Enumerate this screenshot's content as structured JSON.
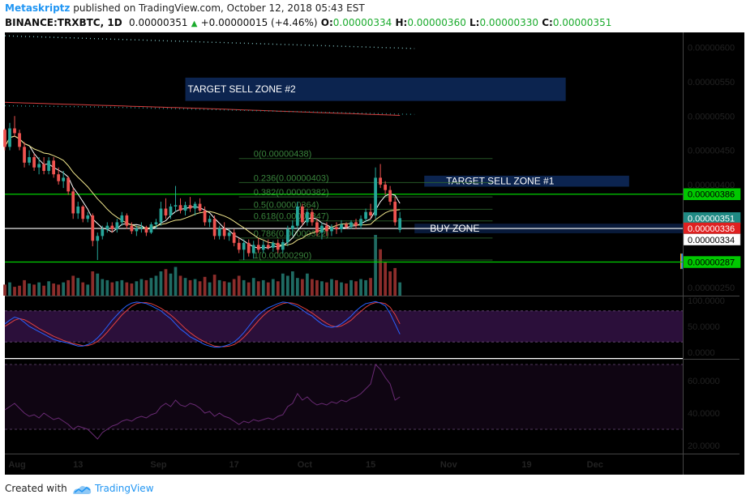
{
  "header": {
    "author": "Metaskriptz",
    "published_text": "published on TradingView.com, October 12, 2018 05:43 EST",
    "symbol": "BINANCE:TRXBTC, 1D",
    "last": "0.00000351",
    "change_text": "+0.00000015 (+4.46%)",
    "o_label": "O:",
    "o_value": "0.00000334",
    "h_label": "H:",
    "h_value": "0.00000360",
    "l_label": "L:",
    "l_value": "0.00000330",
    "c_label": "C:",
    "c_value": "0.00000351"
  },
  "footer": {
    "created_with": "Created with",
    "brand": "TradingView"
  },
  "colors": {
    "background": "#000000",
    "bull": "#26a69a",
    "bear": "#ef5350",
    "support_line": "#00d000",
    "zone_fill": "#10306a",
    "volume_profile_up": "#1e88e5",
    "volume_profile_down": "#f5a623",
    "stoch_k": "#2962ff",
    "stoch_d": "#e04040",
    "stoch_band": "#2b0f3a",
    "rsi_line": "#6a2b75"
  },
  "chart_data": {
    "type": "candlestick",
    "x_ticks": [
      "Aug",
      "13",
      "Sep",
      "17",
      "Oct",
      "15",
      "Nov",
      "19",
      "Dec"
    ],
    "y_ticks": [
      "0.00000600",
      "0.00000550",
      "0.00000500",
      "0.00000450",
      "0.00000400",
      "0.00000250"
    ],
    "ylim": [
      2.38e-06,
      6.22e-06
    ],
    "x_domain_days": [
      0,
      139
    ],
    "price_labels": [
      {
        "text": "0.00000386",
        "value": 3.86e-06,
        "style": "support"
      },
      {
        "text": "0.00000351",
        "value": 3.51e-06,
        "style": "last"
      },
      {
        "text": "0.00000336",
        "value": 3.36e-06,
        "style": "red"
      },
      {
        "text": "0.00000334",
        "value": 3.34e-06,
        "style": "white"
      },
      {
        "text": "0.00000287",
        "value": 2.87e-06,
        "style": "support"
      }
    ],
    "zones": [
      {
        "label": "TARGET SELL ZONE #2",
        "x_start": 37,
        "x_end": 115,
        "y_top": 5.56e-06,
        "y_bottom": 5.22e-06
      },
      {
        "label": "TARGET SELL ZONE #1",
        "x_start": 86,
        "x_end": 128,
        "y_top": 4.13e-06,
        "y_bottom": 3.97e-06
      },
      {
        "label": "BUY ZONE",
        "x_start": 84,
        "x_end": 139,
        "y_top": 3.43e-06,
        "y_bottom": 3.29e-06
      }
    ],
    "support_lines": [
      3.86e-06,
      2.87e-06
    ],
    "fib_levels": [
      {
        "label": "0(0.00000438)",
        "value": 4.38e-06
      },
      {
        "label": "0.236(0.00000403)",
        "value": 4.03e-06
      },
      {
        "label": "0.382(0.00000382)",
        "value": 3.82e-06
      },
      {
        "label": "0.5(0.00000364)",
        "value": 3.64e-06
      },
      {
        "label": "0.618(0.00000347)",
        "value": 3.47e-06
      },
      {
        "label": "0.786(0.00000322)",
        "value": 3.22e-06
      },
      {
        "label": "1(0.00000290)",
        "value": 2.9e-06
      }
    ],
    "candles": [
      [
        0,
        4.8e-06,
        4.82e-06,
        4.5e-06,
        4.55e-06
      ],
      [
        1,
        4.55e-06,
        4.9e-06,
        4.5e-06,
        4.82e-06
      ],
      [
        2,
        4.82e-06,
        5e-06,
        4.7e-06,
        4.75e-06
      ],
      [
        3,
        4.75e-06,
        4.8e-06,
        4.5e-06,
        4.55e-06
      ],
      [
        4,
        4.55e-06,
        4.62e-06,
        4.25e-06,
        4.32e-06
      ],
      [
        5,
        4.32e-06,
        4.5e-06,
        4.28e-06,
        4.4e-06
      ],
      [
        6,
        4.4e-06,
        4.45e-06,
        4.2e-06,
        4.25e-06
      ],
      [
        7,
        4.25e-06,
        4.4e-06,
        4.15e-06,
        4.3e-06
      ],
      [
        8,
        4.3e-06,
        4.4e-06,
        4.15e-06,
        4.2e-06
      ],
      [
        9,
        4.2e-06,
        4.4e-06,
        4.15e-06,
        4.35e-06
      ],
      [
        10,
        4.35e-06,
        4.4e-06,
        4.1e-06,
        4.15e-06
      ],
      [
        11,
        4.15e-06,
        4.25e-06,
        4e-06,
        4.05e-06
      ],
      [
        12,
        4.05e-06,
        4.2e-06,
        3.95e-06,
        4.1e-06
      ],
      [
        13,
        4.1e-06,
        4.12e-06,
        3.85e-06,
        3.9e-06
      ],
      [
        14,
        3.9e-06,
        3.95e-06,
        3.5e-06,
        3.58e-06
      ],
      [
        15,
        3.58e-06,
        3.75e-06,
        3.5e-06,
        3.68e-06
      ],
      [
        16,
        3.68e-06,
        3.7e-06,
        3.45e-06,
        3.5e-06
      ],
      [
        17,
        3.5e-06,
        3.6e-06,
        3.45e-06,
        3.55e-06
      ],
      [
        18,
        3.55e-06,
        3.58e-06,
        3.1e-06,
        3.18e-06
      ],
      [
        19,
        3.18e-06,
        3.3e-06,
        2.9e-06,
        3.25e-06
      ],
      [
        20,
        3.25e-06,
        3.4e-06,
        3.2e-06,
        3.35e-06
      ],
      [
        21,
        3.35e-06,
        3.45e-06,
        3.3e-06,
        3.4e-06
      ],
      [
        22,
        3.4e-06,
        3.45e-06,
        3.3e-06,
        3.35e-06
      ],
      [
        23,
        3.35e-06,
        3.5e-06,
        3.3e-06,
        3.45e-06
      ],
      [
        24,
        3.45e-06,
        3.6e-06,
        3.4e-06,
        3.55e-06
      ],
      [
        25,
        3.55e-06,
        3.58e-06,
        3.35e-06,
        3.4e-06
      ],
      [
        26,
        3.4e-06,
        3.45e-06,
        3.28e-06,
        3.32e-06
      ],
      [
        27,
        3.32e-06,
        3.4e-06,
        3.25e-06,
        3.36e-06
      ],
      [
        28,
        3.36e-06,
        3.45e-06,
        3.3e-06,
        3.38e-06
      ],
      [
        29,
        3.38e-06,
        3.4e-06,
        3.25e-06,
        3.3e-06
      ],
      [
        30,
        3.3e-06,
        3.45e-06,
        3.28e-06,
        3.42e-06
      ],
      [
        31,
        3.42e-06,
        3.5e-06,
        3.35e-06,
        3.45e-06
      ],
      [
        32,
        3.45e-06,
        3.75e-06,
        3.4e-06,
        3.65e-06
      ],
      [
        33,
        3.65e-06,
        3.8e-06,
        3.5e-06,
        3.55e-06
      ],
      [
        34,
        3.55e-06,
        3.72e-06,
        3.5e-06,
        3.68e-06
      ],
      [
        35,
        3.68e-06,
        3.98e-06,
        3.6e-06,
        3.7e-06
      ],
      [
        36,
        3.7e-06,
        3.8e-06,
        3.58e-06,
        3.62e-06
      ],
      [
        37,
        3.62e-06,
        3.75e-06,
        3.55e-06,
        3.7e-06
      ],
      [
        38,
        3.7e-06,
        3.82e-06,
        3.6e-06,
        3.65e-06
      ],
      [
        39,
        3.65e-06,
        3.75e-06,
        3.55e-06,
        3.72e-06
      ],
      [
        40,
        3.72e-06,
        3.8e-06,
        3.6e-06,
        3.62e-06
      ],
      [
        41,
        3.62e-06,
        3.68e-06,
        3.4e-06,
        3.45e-06
      ],
      [
        42,
        3.45e-06,
        3.55e-06,
        3.38e-06,
        3.5e-06
      ],
      [
        43,
        3.5e-06,
        3.55e-06,
        3.2e-06,
        3.25e-06
      ],
      [
        44,
        3.25e-06,
        3.4e-06,
        3.2e-06,
        3.36e-06
      ],
      [
        45,
        3.36e-06,
        3.45e-06,
        3.2e-06,
        3.25e-06
      ],
      [
        46,
        3.25e-06,
        3.35e-06,
        3.18e-06,
        3.3e-06
      ],
      [
        47,
        3.3e-06,
        3.35e-06,
        3.1e-06,
        3.15e-06
      ],
      [
        48,
        3.15e-06,
        3.22e-06,
        3e-06,
        3.05e-06
      ],
      [
        49,
        3.05e-06,
        3.2e-06,
        2.9e-06,
        3.15e-06
      ],
      [
        50,
        3.15e-06,
        3.2e-06,
        2.95e-06,
        3e-06
      ],
      [
        51,
        3e-06,
        3.18e-06,
        2.92e-06,
        3.12e-06
      ],
      [
        52,
        3.12e-06,
        3.22e-06,
        3e-06,
        3.05e-06
      ],
      [
        53,
        3.05e-06,
        3.18e-06,
        3e-06,
        3.12e-06
      ],
      [
        54,
        3.12e-06,
        3.2e-06,
        3.05e-06,
        3.08e-06
      ],
      [
        55,
        3.08e-06,
        3.18e-06,
        3.02e-06,
        3.15e-06
      ],
      [
        56,
        3.15e-06,
        3.2e-06,
        3e-06,
        3.05e-06
      ],
      [
        57,
        3.05e-06,
        3.2e-06,
        3e-06,
        3.16e-06
      ],
      [
        58,
        3.16e-06,
        3.4e-06,
        3.1e-06,
        3.35e-06
      ],
      [
        59,
        3.35e-06,
        3.48e-06,
        3.25e-06,
        3.4e-06
      ],
      [
        60,
        3.4e-06,
        3.75e-06,
        3.35e-06,
        3.68e-06
      ],
      [
        61,
        3.68e-06,
        3.72e-06,
        3.4e-06,
        3.45e-06
      ],
      [
        62,
        3.45e-06,
        3.65e-06,
        3.4e-06,
        3.6e-06
      ],
      [
        63,
        3.6e-06,
        3.65e-06,
        3.4e-06,
        3.45e-06
      ],
      [
        64,
        3.45e-06,
        3.5e-06,
        3.25e-06,
        3.3e-06
      ],
      [
        65,
        3.3e-06,
        3.45e-06,
        3.2e-06,
        3.4e-06
      ],
      [
        66,
        3.4e-06,
        3.45e-06,
        3.25e-06,
        3.32e-06
      ],
      [
        67,
        3.32e-06,
        3.42e-06,
        3.25e-06,
        3.38e-06
      ],
      [
        68,
        3.38e-06,
        3.45e-06,
        3.28e-06,
        3.35e-06
      ],
      [
        69,
        3.35e-06,
        3.48e-06,
        3.3e-06,
        3.42e-06
      ],
      [
        70,
        3.42e-06,
        3.45e-06,
        3.35e-06,
        3.38e-06
      ],
      [
        71,
        3.38e-06,
        3.48e-06,
        3.35e-06,
        3.45e-06
      ],
      [
        72,
        3.45e-06,
        3.5e-06,
        3.35e-06,
        3.4e-06
      ],
      [
        73,
        3.4e-06,
        3.55e-06,
        3.35e-06,
        3.5e-06
      ],
      [
        74,
        3.5e-06,
        3.65e-06,
        3.45e-06,
        3.6e-06
      ],
      [
        75,
        3.6e-06,
        3.72e-06,
        3.5e-06,
        3.55e-06
      ],
      [
        76,
        3.55e-06,
        4.25e-06,
        3.5e-06,
        4.1e-06
      ],
      [
        77,
        4.1e-06,
        4.3e-06,
        3.95e-06,
        4e-06
      ],
      [
        78,
        4e-06,
        4.05e-06,
        3.85e-06,
        3.92e-06
      ],
      [
        79,
        3.92e-06,
        3.98e-06,
        3.7e-06,
        3.75e-06
      ],
      [
        80,
        3.75e-06,
        3.82e-06,
        3.4e-06,
        3.45e-06
      ],
      [
        81,
        3.34e-06,
        3.6e-06,
        3.3e-06,
        3.51e-06
      ]
    ],
    "volume": [
      10,
      12,
      8,
      9,
      14,
      11,
      10,
      12,
      9,
      13,
      11,
      10,
      12,
      14,
      18,
      16,
      12,
      10,
      22,
      20,
      15,
      14,
      12,
      13,
      14,
      12,
      11,
      13,
      15,
      14,
      16,
      18,
      22,
      24,
      20,
      26,
      18,
      16,
      14,
      15,
      13,
      17,
      12,
      19,
      14,
      13,
      12,
      15,
      18,
      14,
      12,
      16,
      13,
      14,
      12,
      15,
      13,
      20,
      18,
      22,
      16,
      15,
      20,
      15,
      14,
      13,
      12,
      15,
      14,
      12,
      11,
      14,
      13,
      15,
      14,
      16,
      55,
      42,
      30,
      22,
      25,
      12
    ],
    "stoch_k": [
      55,
      62,
      68,
      65,
      58,
      50,
      45,
      40,
      35,
      30,
      25,
      22,
      20,
      18,
      15,
      12,
      12,
      15,
      20,
      28,
      38,
      50,
      62,
      72,
      82,
      90,
      95,
      97,
      96,
      94,
      90,
      85,
      80,
      72,
      65,
      55,
      45,
      38,
      30,
      25,
      20,
      15,
      12,
      10,
      10,
      12,
      15,
      20,
      28,
      38,
      50,
      62,
      72,
      80,
      86,
      90,
      94,
      97,
      96,
      92,
      88,
      82,
      75,
      70,
      62,
      55,
      50,
      48,
      50,
      55,
      62,
      70,
      80,
      88,
      94,
      96,
      98,
      95,
      90,
      75,
      55,
      35
    ],
    "stoch_d": [
      50,
      56,
      62,
      65,
      63,
      58,
      52,
      46,
      41,
      36,
      31,
      27,
      23,
      20,
      17,
      15,
      13,
      13,
      16,
      21,
      29,
      39,
      50,
      61,
      72,
      81,
      89,
      94,
      96,
      96,
      94,
      90,
      85,
      79,
      72,
      64,
      55,
      46,
      38,
      31,
      25,
      20,
      16,
      12,
      11,
      11,
      12,
      15,
      21,
      29,
      39,
      50,
      61,
      71,
      79,
      85,
      90,
      94,
      96,
      95,
      92,
      87,
      82,
      76,
      69,
      62,
      56,
      51,
      49,
      51,
      56,
      62,
      71,
      79,
      87,
      93,
      96,
      96,
      94,
      87,
      73,
      55
    ],
    "rsi": [
      42,
      44,
      46,
      43,
      40,
      38,
      39,
      37,
      40,
      38,
      36,
      37,
      35,
      33,
      30,
      32,
      31,
      30,
      27,
      24,
      28,
      30,
      32,
      33,
      35,
      36,
      35,
      37,
      38,
      37,
      39,
      40,
      44,
      46,
      44,
      48,
      45,
      44,
      46,
      45,
      43,
      40,
      41,
      38,
      40,
      38,
      37,
      35,
      33,
      35,
      34,
      36,
      35,
      36,
      37,
      36,
      38,
      39,
      44,
      46,
      52,
      48,
      50,
      47,
      45,
      46,
      45,
      47,
      46,
      48,
      47,
      49,
      50,
      52,
      55,
      58,
      70,
      67,
      62,
      58,
      48,
      50
    ],
    "rsi_ticks": [
      "60.0000",
      "40.0000",
      "20.0000"
    ],
    "stoch_ticks": [
      "100.0000",
      "50.0000",
      "0.0000"
    ]
  }
}
